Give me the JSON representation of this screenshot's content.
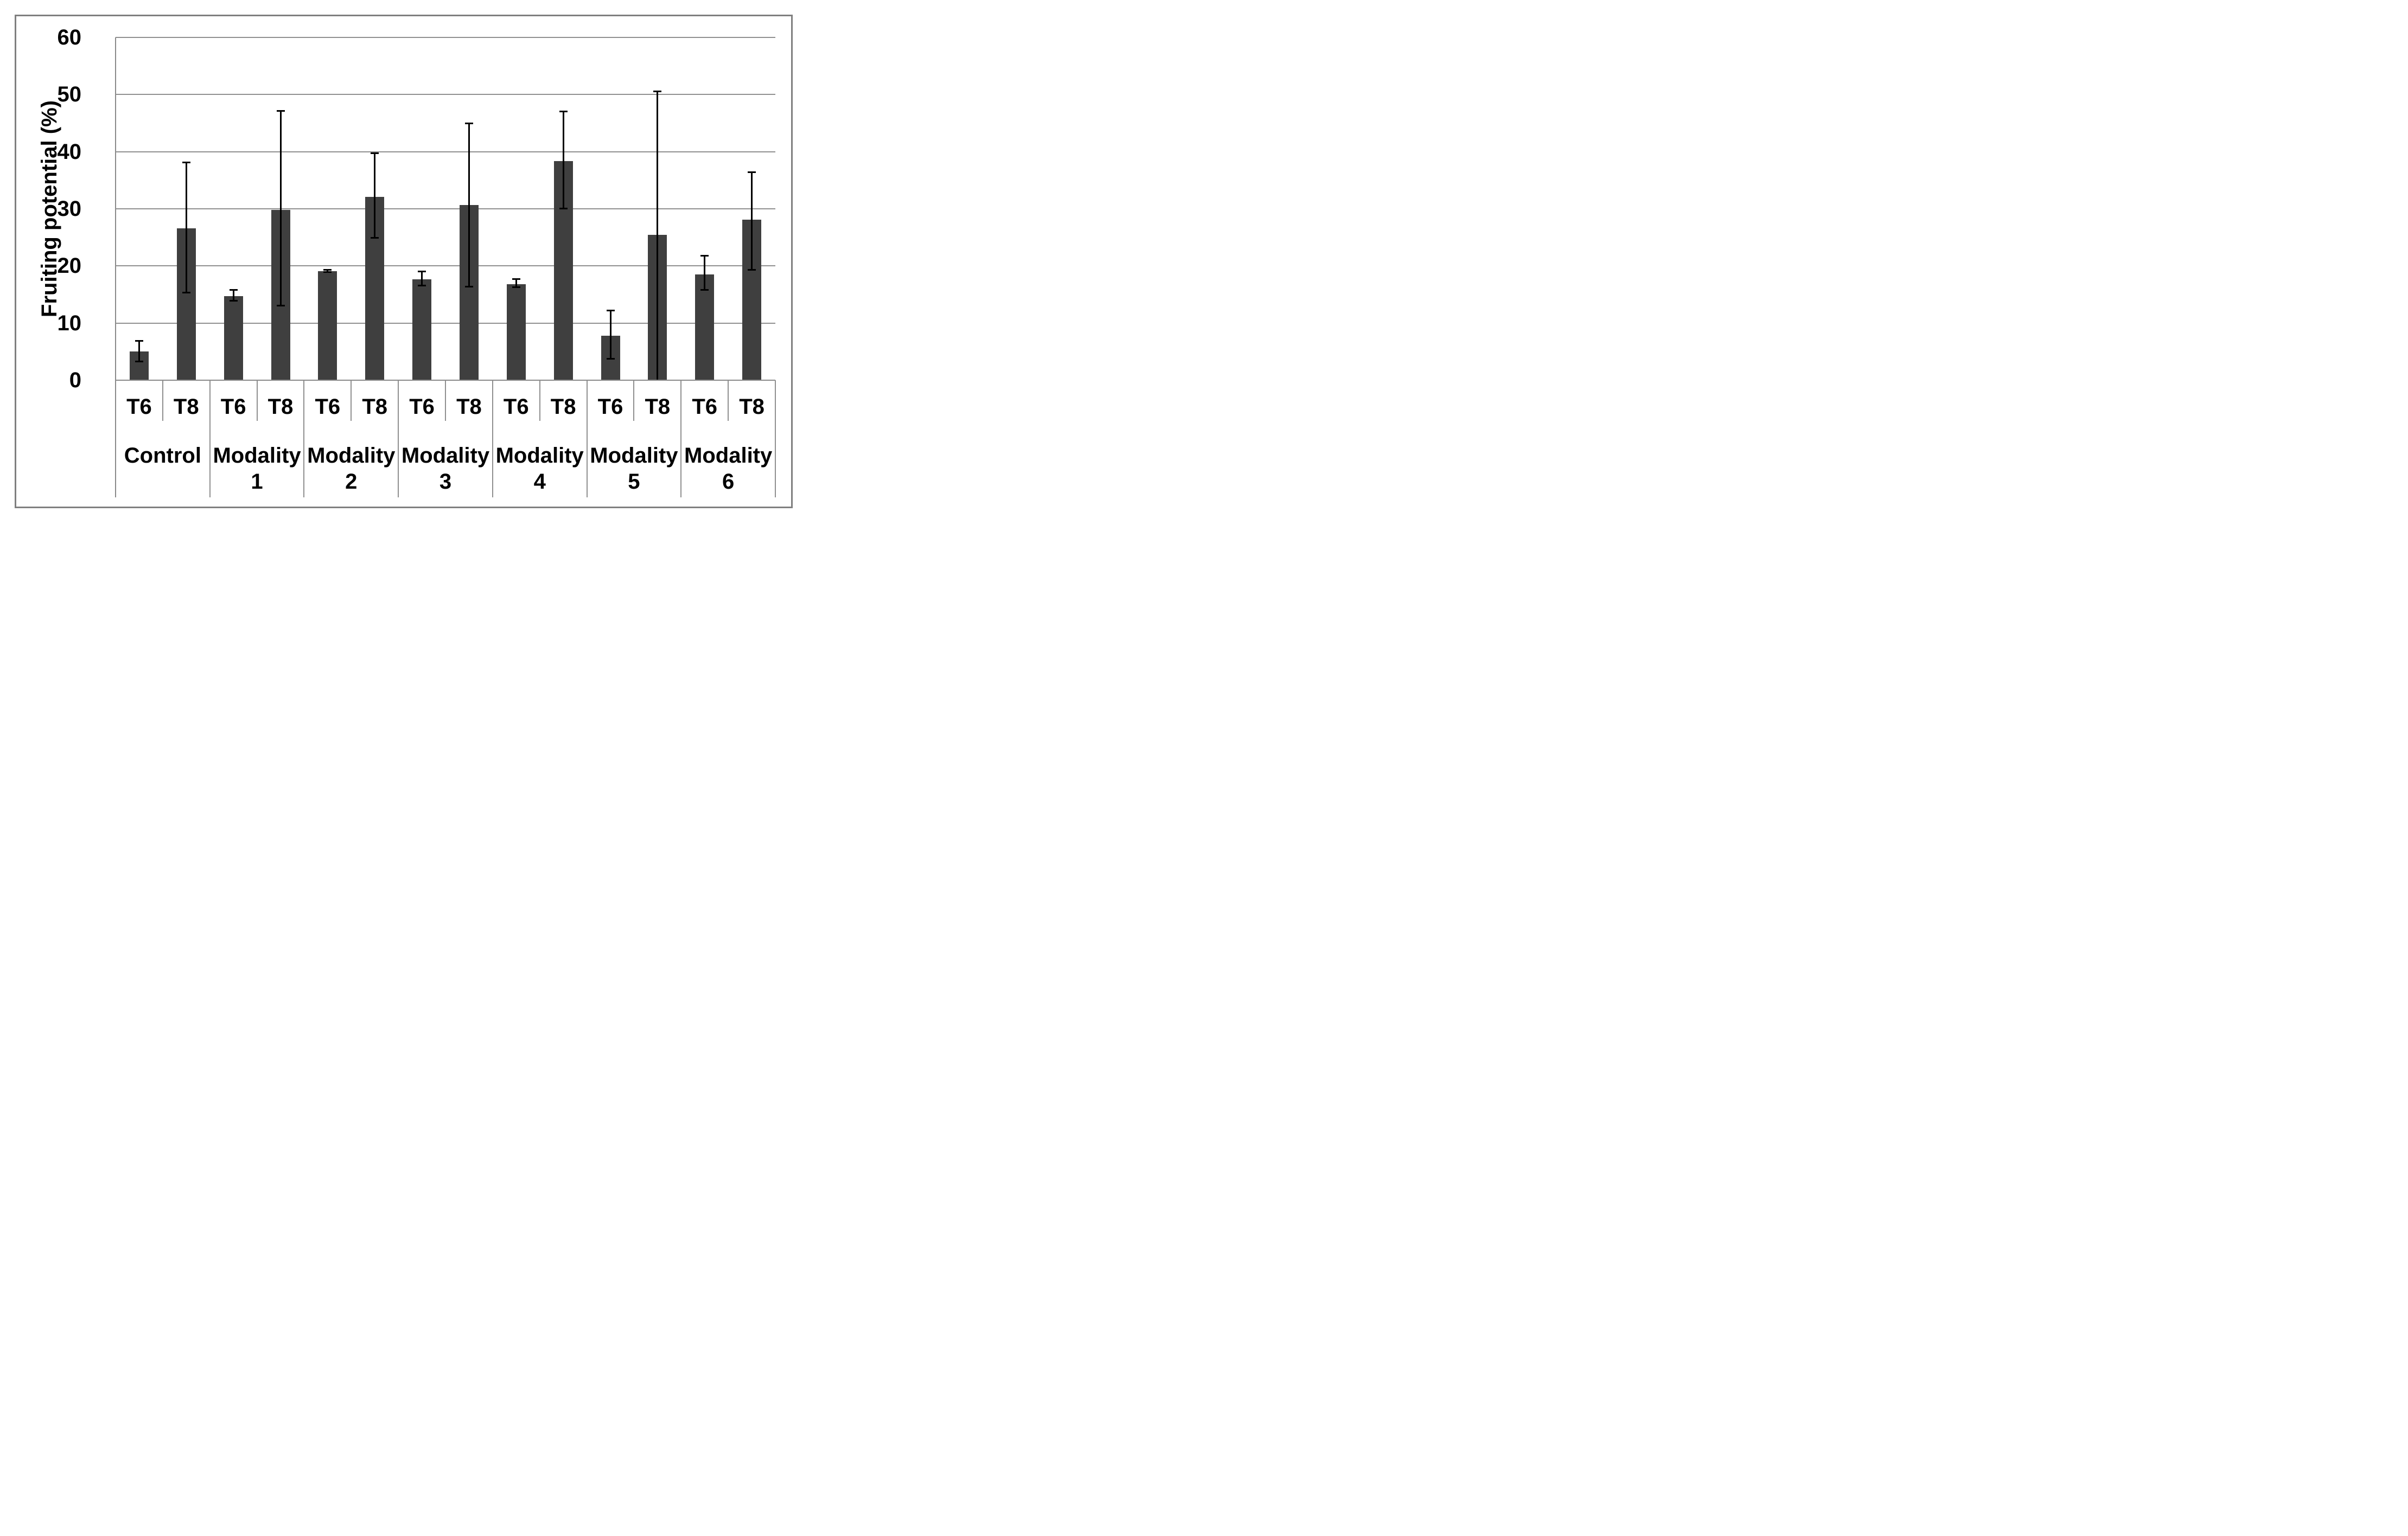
{
  "figure": {
    "kind": "excel-style clustered bar chart with error bars",
    "background": "#ffffff",
    "border_color": "#808080"
  },
  "chart_data": {
    "type": "bar",
    "title": "",
    "xlabel": "",
    "ylabel": "Fruiting potential (%)",
    "ylim": [
      0,
      60
    ],
    "y_ticks": [
      0,
      10,
      20,
      30,
      40,
      50,
      60
    ],
    "grid": true,
    "legend": "none",
    "categories": [
      "Control",
      "Modality 1",
      "Modality 2",
      "Modality 3",
      "Modality 4",
      "Modality 5",
      "Modality 6"
    ],
    "category_label_lines": [
      [
        "Control"
      ],
      [
        "Modality",
        "1"
      ],
      [
        "Modality",
        "2"
      ],
      [
        "Modality",
        "3"
      ],
      [
        "Modality",
        "4"
      ],
      [
        "Modality",
        "5"
      ],
      [
        "Modality",
        "6"
      ]
    ],
    "sub_categories": [
      "T6",
      "T8"
    ],
    "series": [
      {
        "name": "T6",
        "values": [
          5.0,
          14.7,
          19.1,
          17.7,
          16.8,
          7.8,
          18.5
        ],
        "err_low": [
          3.2,
          13.9,
          18.9,
          16.5,
          16.2,
          3.7,
          15.8
        ],
        "err_high": [
          6.9,
          15.9,
          19.4,
          19.1,
          17.8,
          12.2,
          21.8
        ]
      },
      {
        "name": "T8",
        "values": [
          26.6,
          29.8,
          32.1,
          30.7,
          38.4,
          25.4,
          28.1
        ],
        "err_low": [
          15.3,
          13.0,
          24.9,
          16.3,
          30.0,
          0.0,
          19.3
        ],
        "err_high": [
          38.2,
          47.2,
          39.8,
          45.0,
          47.1,
          50.6,
          36.5
        ]
      }
    ],
    "colors": {
      "bar": "#3f3f3f",
      "error_bar": "#000000",
      "gridline": "#909090",
      "axis": "#8a8a8a",
      "border": "#808080",
      "text": "#000000",
      "background": "#ffffff"
    }
  }
}
